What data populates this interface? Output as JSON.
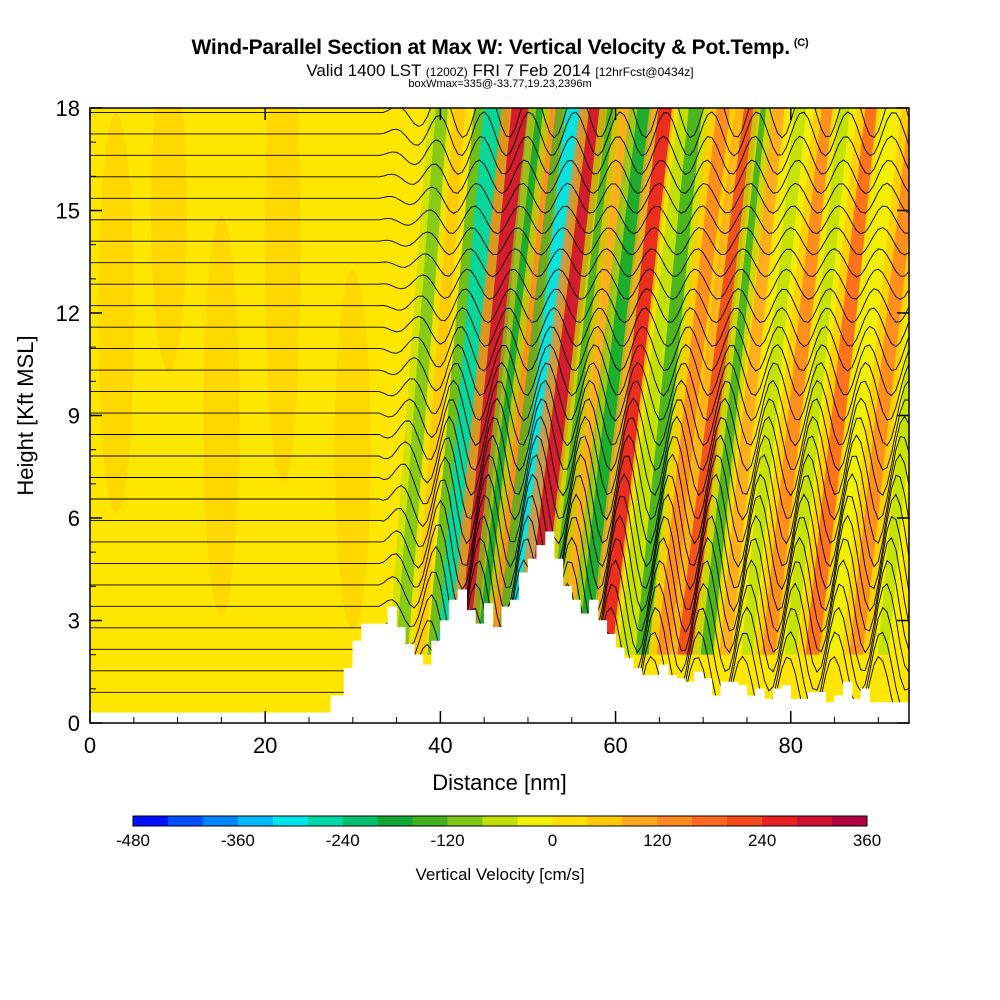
{
  "chart_data": {
    "type": "heatmap",
    "title": "Wind-Parallel Section at Max W: Vertical Velocity & Pot.Temp.",
    "title_tag": "(C)",
    "subtitle_main": "Valid 1400 LST",
    "subtitle_small1": "(1200Z)",
    "subtitle_date": "FRI 7 Feb 2014",
    "subtitle_small2": "[12hrFcst@0434z]",
    "subtitle2": "boxWmax=335@-33.77,19.23,2396m",
    "xlabel": "Distance [nm]",
    "ylabel": "Height [Kft MSL]",
    "xlim": [
      0,
      93.5
    ],
    "ylim": [
      0,
      18
    ],
    "xticks": [
      0,
      20,
      40,
      60,
      80
    ],
    "yticks": [
      0,
      3,
      6,
      9,
      12,
      15,
      18
    ],
    "colorbar": {
      "label": "Vertical Velocity [cm/s]",
      "ticks": [
        -480,
        -360,
        -240,
        -120,
        0,
        120,
        240,
        360
      ],
      "min": -480,
      "max": 360,
      "colors": [
        "#0010ff",
        "#0050ff",
        "#0085ff",
        "#00b8ff",
        "#00e5f0",
        "#00d8a8",
        "#00c070",
        "#10a830",
        "#40b020",
        "#80c818",
        "#c0e000",
        "#f0f000",
        "#ffe000",
        "#ffc800",
        "#ffa820",
        "#ff8820",
        "#ff6820",
        "#f04818",
        "#e82020",
        "#d01030",
        "#b00040"
      ]
    },
    "terrain_kft": [
      [
        0,
        0.3
      ],
      [
        27.5,
        0.3
      ],
      [
        27.5,
        0.8
      ],
      [
        29,
        1.6
      ],
      [
        30,
        2.4
      ],
      [
        31,
        2.9
      ],
      [
        33,
        2.9
      ],
      [
        34,
        3.4
      ],
      [
        35,
        2.8
      ],
      [
        36,
        2.3
      ],
      [
        37,
        2.0
      ],
      [
        38,
        1.7
      ],
      [
        39,
        2.4
      ],
      [
        40,
        3.0
      ],
      [
        41,
        3.6
      ],
      [
        42,
        3.9
      ],
      [
        43,
        3.3
      ],
      [
        44,
        2.9
      ],
      [
        45,
        3.5
      ],
      [
        46,
        2.8
      ],
      [
        47,
        3.4
      ],
      [
        48,
        3.6
      ],
      [
        49,
        4.4
      ],
      [
        50,
        4.8
      ],
      [
        51,
        5.2
      ],
      [
        52,
        5.6
      ],
      [
        53,
        4.8
      ],
      [
        54,
        4.0
      ],
      [
        55,
        3.6
      ],
      [
        56,
        3.2
      ],
      [
        57,
        3.6
      ],
      [
        58,
        3.0
      ],
      [
        59,
        2.6
      ],
      [
        60,
        2.2
      ],
      [
        61,
        1.9
      ],
      [
        62,
        1.6
      ],
      [
        63,
        1.4
      ],
      [
        64,
        1.4
      ],
      [
        65,
        1.7
      ],
      [
        66,
        1.4
      ],
      [
        67,
        1.3
      ],
      [
        68,
        1.2
      ],
      [
        69,
        1.5
      ],
      [
        70,
        1.3
      ],
      [
        71,
        0.8
      ],
      [
        72,
        1.2
      ],
      [
        74,
        1.1
      ],
      [
        75,
        0.8
      ],
      [
        76,
        1.0
      ],
      [
        77,
        0.7
      ],
      [
        78,
        1.0
      ],
      [
        79,
        1.1
      ],
      [
        80,
        0.7
      ],
      [
        82,
        0.9
      ],
      [
        84,
        0.6
      ],
      [
        85,
        0.8
      ],
      [
        86,
        1.2
      ],
      [
        87,
        0.7
      ],
      [
        88,
        1.0
      ],
      [
        89,
        0.6
      ],
      [
        93.5,
        0.6
      ]
    ],
    "vertical_velocity_bands_cm_s": [
      {
        "x": 36,
        "w": -120,
        "tilt": 0.3
      },
      {
        "x": 38,
        "w": 60,
        "tilt": 0.3
      },
      {
        "x": 41,
        "w": -280,
        "tilt": 0.35
      },
      {
        "x": 43.5,
        "w": 280,
        "tilt": 0.4
      },
      {
        "x": 45.5,
        "w": -200,
        "tilt": 0.45
      },
      {
        "x": 47,
        "w": 120,
        "tilt": 0.45
      },
      {
        "x": 49,
        "w": -300,
        "tilt": 0.45
      },
      {
        "x": 51,
        "w": 300,
        "tilt": 0.5
      },
      {
        "x": 53.5,
        "w": -150,
        "tilt": 0.45
      },
      {
        "x": 55,
        "w": 90,
        "tilt": 0.45
      },
      {
        "x": 57,
        "w": -180,
        "tilt": 0.45
      },
      {
        "x": 59.5,
        "w": 240,
        "tilt": 0.45
      },
      {
        "x": 61.5,
        "w": -60,
        "tilt": 0.45
      },
      {
        "x": 63.5,
        "w": -140,
        "tilt": 0.4
      },
      {
        "x": 66,
        "w": 150,
        "tilt": 0.45
      },
      {
        "x": 68.5,
        "w": 200,
        "tilt": 0.5
      },
      {
        "x": 71,
        "w": -130,
        "tilt": 0.45
      },
      {
        "x": 73,
        "w": 80,
        "tilt": 0.4
      },
      {
        "x": 75.5,
        "w": -80,
        "tilt": 0.4
      },
      {
        "x": 78,
        "w": 140,
        "tilt": 0.45
      },
      {
        "x": 80.5,
        "w": -60,
        "tilt": 0.4
      },
      {
        "x": 83,
        "w": 160,
        "tilt": 0.45
      },
      {
        "x": 85.5,
        "w": -40,
        "tilt": 0.4
      },
      {
        "x": 88,
        "w": 150,
        "tilt": 0.45
      },
      {
        "x": 91,
        "w": -50,
        "tilt": 0.4
      }
    ],
    "potential_temperature_contour_count": 28
  }
}
